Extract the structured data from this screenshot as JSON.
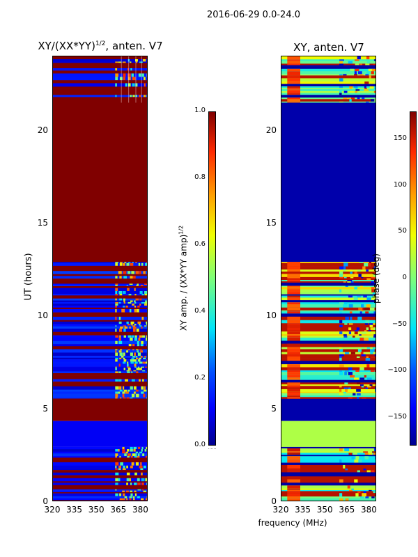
{
  "suptitle": "2016-06-29 0.0-24.0",
  "xlabel_shared": "frequency (MHz)",
  "colors": {
    "dark_red": "#800000",
    "red": "#ff2a00",
    "orange": "#ffa000",
    "yellow": "#f0ff00",
    "green": "#7dff7a",
    "cyan": "#00e4f8",
    "blue": "#0050ff",
    "dark_blue": "#00008f"
  },
  "chart_data": [
    {
      "type": "heatmap",
      "title_main": "XY/(XX*YY)",
      "title_exp": "1/2",
      "title_rest": ", anten. V7",
      "ylabel": "UT (hours)",
      "xlim": [
        320,
        385
      ],
      "ylim": [
        0,
        24
      ],
      "xticks": [
        "320",
        "335",
        "350",
        "365",
        "380"
      ],
      "xtick_values": [
        320,
        335,
        350,
        365,
        380
      ],
      "yticks": [
        "0",
        "5",
        "10",
        "15",
        "20"
      ],
      "ytick_values": [
        0,
        5,
        10,
        15,
        20
      ],
      "colorbar": {
        "label_main": "XY amp. / (XX*YY amp)",
        "label_exp": "1/2",
        "range": [
          0.0,
          1.0
        ],
        "ticks": [
          "0.0",
          "0.2",
          "0.4",
          "0.6",
          "0.8",
          "1.0"
        ],
        "tick_values": [
          0.0,
          0.2,
          0.4,
          0.6,
          0.8,
          1.0
        ]
      },
      "segments": [
        {
          "ut": [
            21.5,
            24.0
          ],
          "value": 0.12,
          "note": "striped low amplitude, noisy above 363 MHz"
        },
        {
          "ut": [
            12.9,
            21.5
          ],
          "value": 1.0
        },
        {
          "ut": [
            5.5,
            12.9
          ],
          "value": 0.12,
          "note": "striped low amplitude, noisy above 363 MHz"
        },
        {
          "ut": [
            4.3,
            5.5
          ],
          "value": 1.0
        },
        {
          "ut": [
            2.9,
            4.3
          ],
          "value": 0.1
        },
        {
          "ut": [
            0.0,
            2.9
          ],
          "value": 0.5,
          "note": "alternating dark red and blue stripes"
        }
      ]
    },
    {
      "type": "heatmap",
      "title": "XY, anten. V7",
      "xlim": [
        320,
        385
      ],
      "ylim": [
        0,
        24
      ],
      "xticks": [
        "320",
        "335",
        "350",
        "365",
        "380"
      ],
      "xtick_values": [
        320,
        335,
        350,
        365,
        380
      ],
      "yticks": [
        "0",
        "5",
        "10",
        "15",
        "20"
      ],
      "ytick_values": [
        0,
        5,
        10,
        15,
        20
      ],
      "colorbar": {
        "label": "phase (deg)",
        "range": [
          -180,
          180
        ],
        "ticks": [
          "150",
          "100",
          "50",
          "0",
          "−50",
          "−100",
          "−150"
        ],
        "tick_values": [
          150,
          100,
          50,
          0,
          -50,
          -100,
          -150
        ]
      },
      "segments": [
        {
          "ut": [
            21.5,
            24.0
          ],
          "value": 60,
          "note": "striped cyan/red phases"
        },
        {
          "ut": [
            12.9,
            21.5
          ],
          "value": -170
        },
        {
          "ut": [
            5.5,
            12.9
          ],
          "value": 40,
          "note": "striped mixed phases, red/orange near 325-330 MHz"
        },
        {
          "ut": [
            4.3,
            5.5
          ],
          "value": -170
        },
        {
          "ut": [
            2.9,
            4.3
          ],
          "value": 20
        },
        {
          "ut": [
            0.0,
            2.9
          ],
          "value": -120,
          "note": "dark blue with stripes"
        }
      ]
    }
  ]
}
